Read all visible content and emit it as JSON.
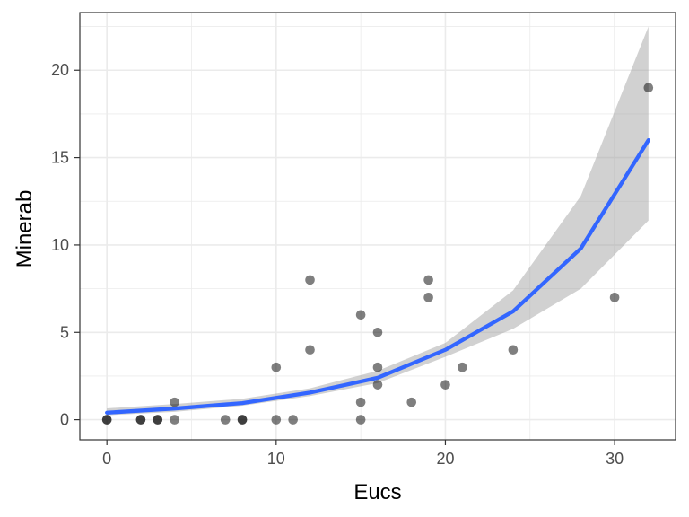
{
  "chart_data": {
    "type": "scatter",
    "xlabel": "Eucs",
    "ylabel": "Minerab",
    "xlim": [
      -1.6,
      33.6
    ],
    "ylim": [
      -1.15,
      23.3
    ],
    "x_ticks": [
      0,
      10,
      20,
      30
    ],
    "y_ticks": [
      0,
      5,
      10,
      15,
      20
    ],
    "x_tick_labels": [
      "0",
      "10",
      "20",
      "30"
    ],
    "y_tick_labels": [
      "0",
      "5",
      "10",
      "15",
      "20"
    ],
    "grid": true,
    "points": [
      {
        "x": 0,
        "y": 0
      },
      {
        "x": 0,
        "y": 0
      },
      {
        "x": 2,
        "y": 0
      },
      {
        "x": 2,
        "y": 0
      },
      {
        "x": 3,
        "y": 0
      },
      {
        "x": 3,
        "y": 0
      },
      {
        "x": 4,
        "y": 0
      },
      {
        "x": 4,
        "y": 1
      },
      {
        "x": 7,
        "y": 0
      },
      {
        "x": 8,
        "y": 0
      },
      {
        "x": 8,
        "y": 0
      },
      {
        "x": 10,
        "y": 0
      },
      {
        "x": 10,
        "y": 3
      },
      {
        "x": 11,
        "y": 0
      },
      {
        "x": 12,
        "y": 8
      },
      {
        "x": 12,
        "y": 4
      },
      {
        "x": 15,
        "y": 6
      },
      {
        "x": 15,
        "y": 1
      },
      {
        "x": 15,
        "y": 0
      },
      {
        "x": 16,
        "y": 5
      },
      {
        "x": 16,
        "y": 3
      },
      {
        "x": 16,
        "y": 2
      },
      {
        "x": 18,
        "y": 1
      },
      {
        "x": 19,
        "y": 8
      },
      {
        "x": 19,
        "y": 7
      },
      {
        "x": 20,
        "y": 2
      },
      {
        "x": 21,
        "y": 3
      },
      {
        "x": 24,
        "y": 4
      },
      {
        "x": 30,
        "y": 7
      },
      {
        "x": 32,
        "y": 19
      }
    ],
    "fit": {
      "x": [
        0,
        4,
        8,
        12,
        16,
        20,
        24,
        28,
        32
      ],
      "y": [
        0.4,
        0.64,
        0.95,
        1.55,
        2.4,
        4.0,
        6.2,
        9.8,
        16.0
      ],
      "lower": [
        0.25,
        0.45,
        0.8,
        1.35,
        2.1,
        3.6,
        5.2,
        7.5,
        11.4
      ],
      "upper": [
        0.65,
        0.9,
        1.2,
        1.8,
        2.8,
        4.4,
        7.4,
        12.8,
        22.5
      ]
    },
    "colors": {
      "points": "#000000",
      "fit_line": "#3366ff",
      "ribbon": "#999999",
      "grid": "#ebebeb",
      "border": "#333333"
    }
  }
}
